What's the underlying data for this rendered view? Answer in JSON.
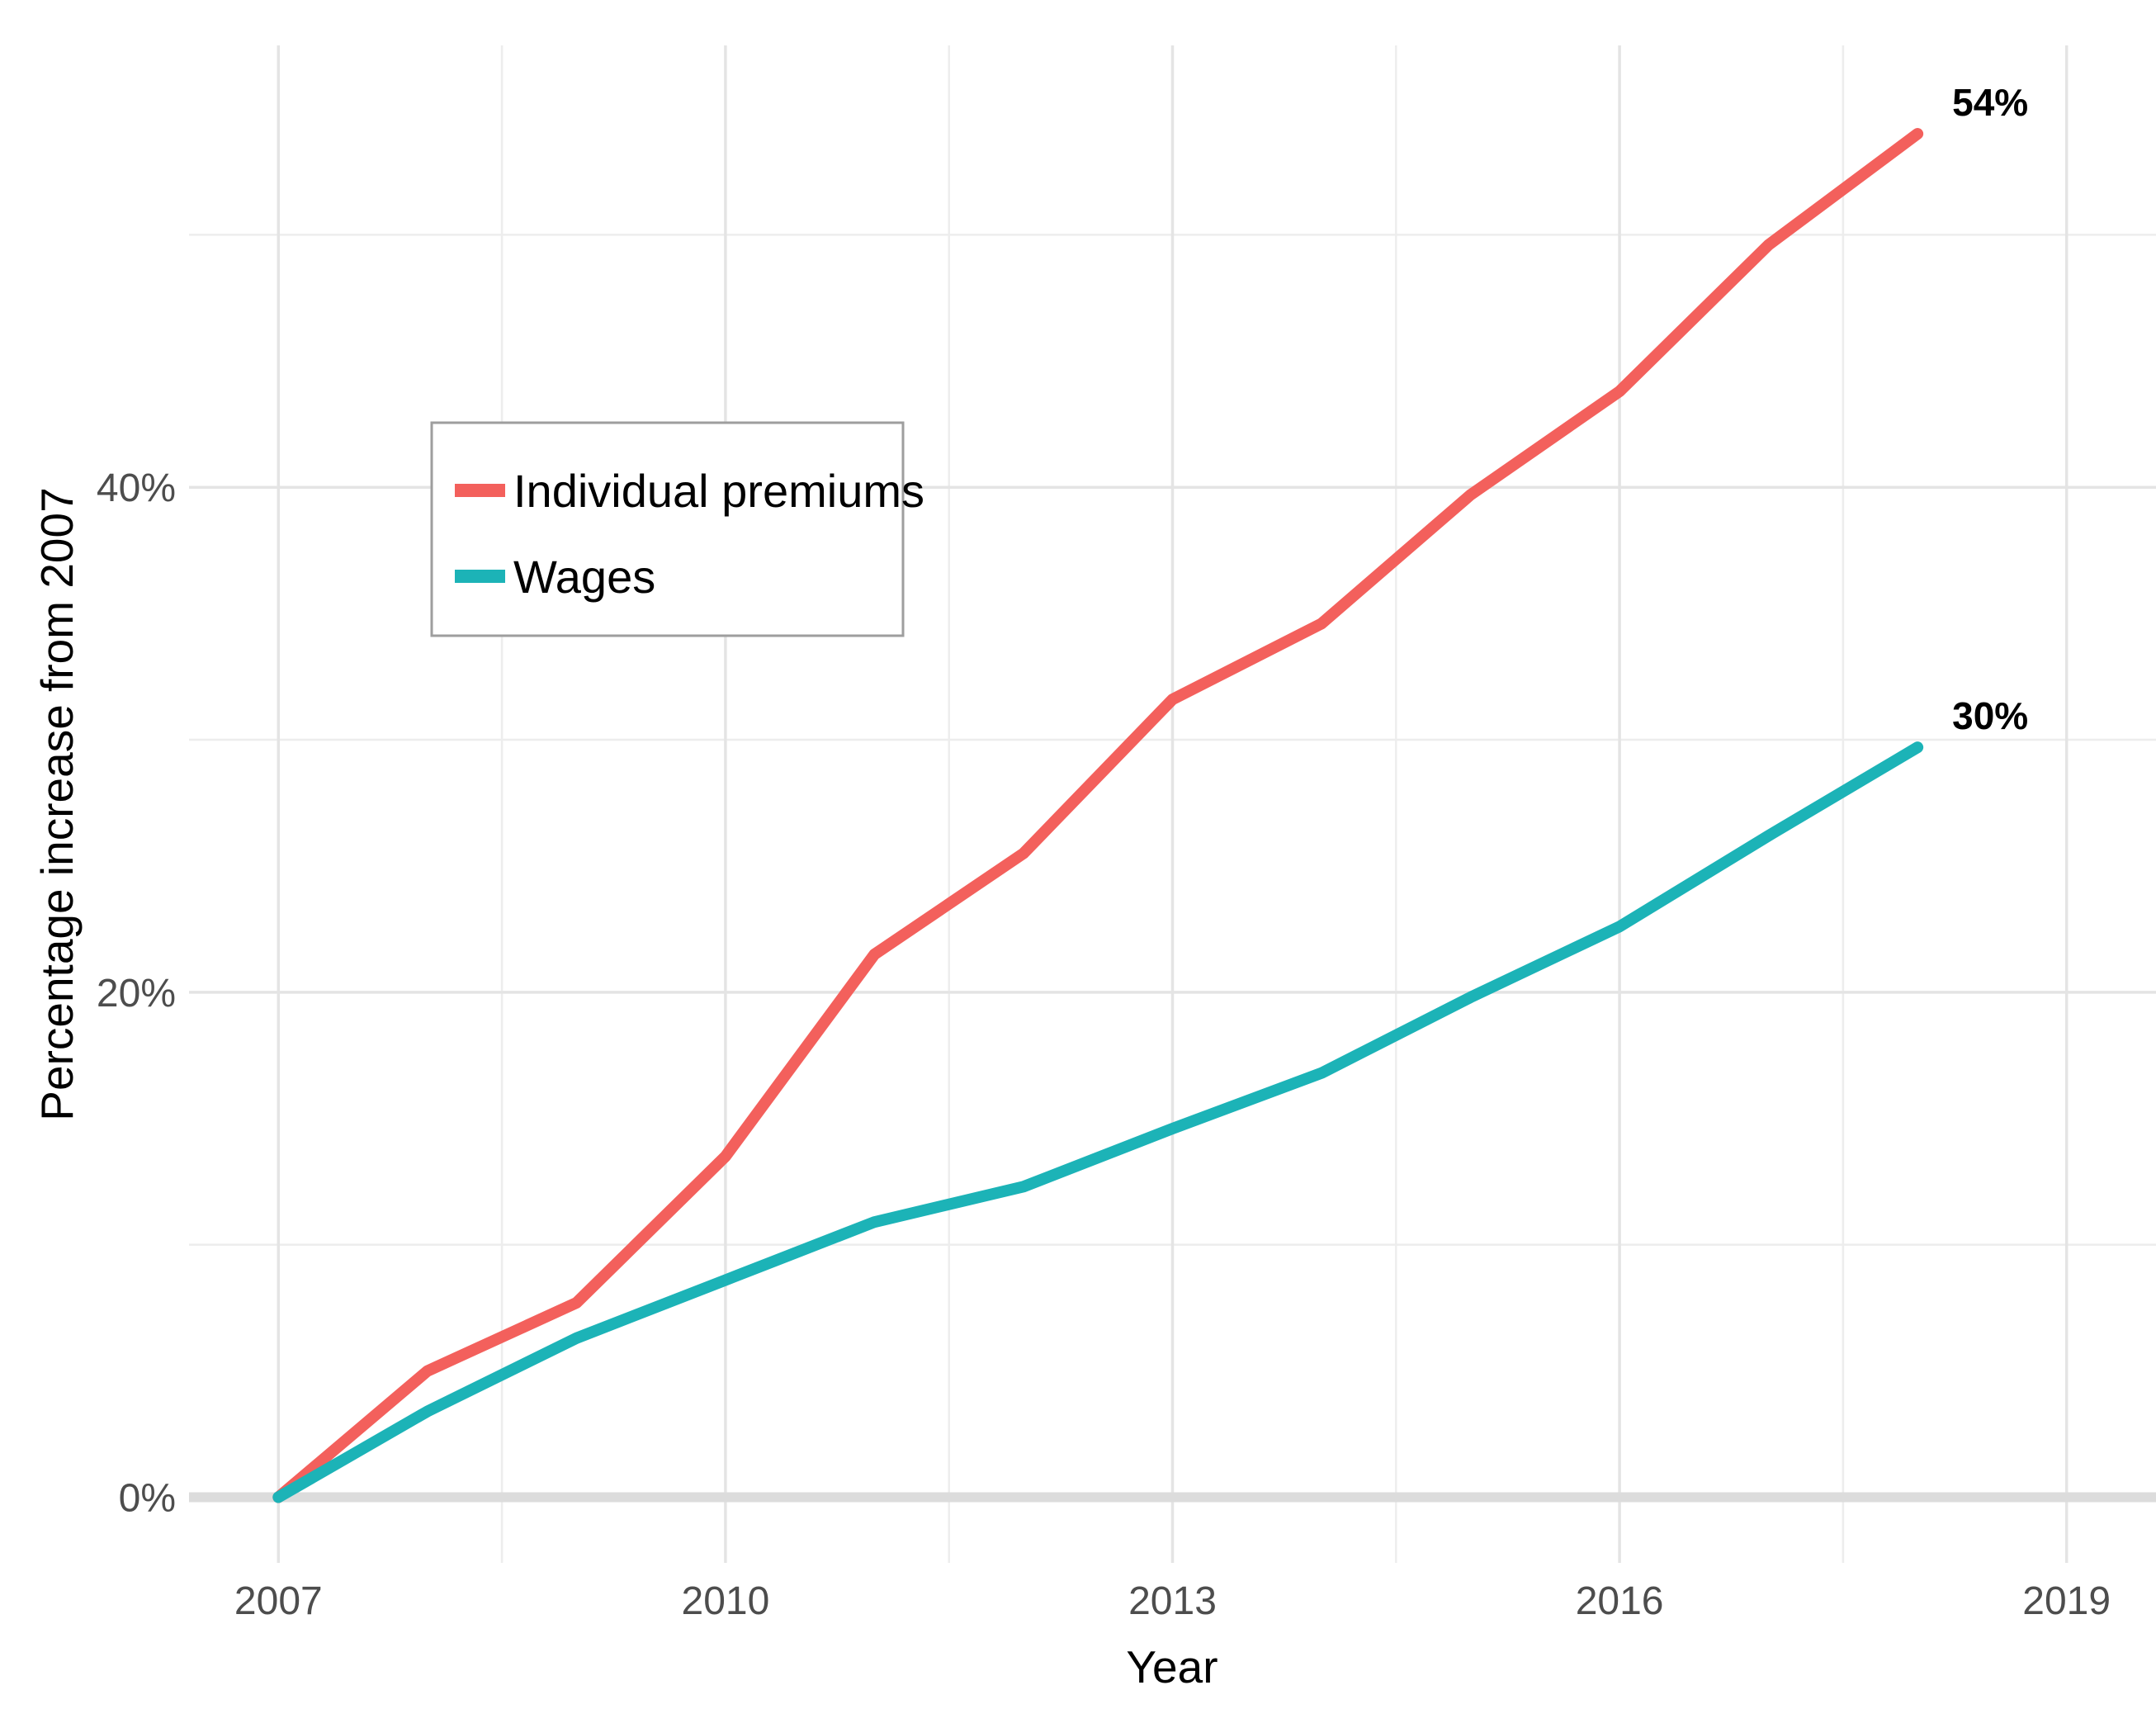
{
  "axes": {
    "x_title": "Year",
    "y_title": "Percentage increase from 2007"
  },
  "legend": {
    "border_color": "#9E9E9E",
    "background": "#FFFFFF",
    "items": [
      {
        "label": "Individual premiums",
        "color": "#F3605C"
      },
      {
        "label": "Wages",
        "color": "#1CB3B7"
      }
    ]
  },
  "annotations": {
    "premiums_end_label": "54%",
    "wages_end_label": "30%"
  },
  "colors": {
    "grid_major": "#E4E4E4",
    "grid_minor": "#EDEDED",
    "baseline": "#DCDCDC",
    "tick_text": "#4D4D4D",
    "title_text": "#000000",
    "background": "#FFFFFF"
  },
  "chart_data": {
    "type": "line",
    "title": "",
    "xlabel": "Year",
    "ylabel": "Percentage increase from 2007",
    "x": [
      2007,
      2008,
      2009,
      2010,
      2011,
      2012,
      2013,
      2014,
      2015,
      2016,
      2017,
      2018
    ],
    "series": [
      {
        "name": "Individual premiums",
        "color": "#F3605C",
        "values": [
          0,
          5,
          7.7,
          13.5,
          21.5,
          25.5,
          31.6,
          34.6,
          39.7,
          43.8,
          49.6,
          54
        ],
        "end_label": "54%"
      },
      {
        "name": "Wages",
        "color": "#1CB3B7",
        "values": [
          0,
          3.4,
          6.3,
          8.6,
          10.9,
          12.3,
          14.6,
          16.8,
          19.8,
          22.6,
          26.2,
          29.7
        ],
        "end_label": "30%"
      }
    ],
    "x_ticks": [
      {
        "value": 2007,
        "label": "2007"
      },
      {
        "value": 2010,
        "label": "2010"
      },
      {
        "value": 2013,
        "label": "2013"
      },
      {
        "value": 2016,
        "label": "2016"
      },
      {
        "value": 2019,
        "label": "2019"
      }
    ],
    "y_ticks": [
      {
        "value": 0,
        "label": "0%"
      },
      {
        "value": 20,
        "label": "20%"
      },
      {
        "value": 40,
        "label": "40%"
      }
    ],
    "x_minor": [
      2008.5,
      2011.5,
      2014.5,
      2017.5
    ],
    "y_minor": [
      10,
      30,
      50
    ],
    "xlim": [
      2006.4,
      2019.6
    ],
    "ylim": [
      -2.6,
      57.5
    ],
    "grid": true,
    "legend_position": "upper-left-inset",
    "baseline": {
      "y": 0,
      "color": "#DCDCDC"
    }
  }
}
